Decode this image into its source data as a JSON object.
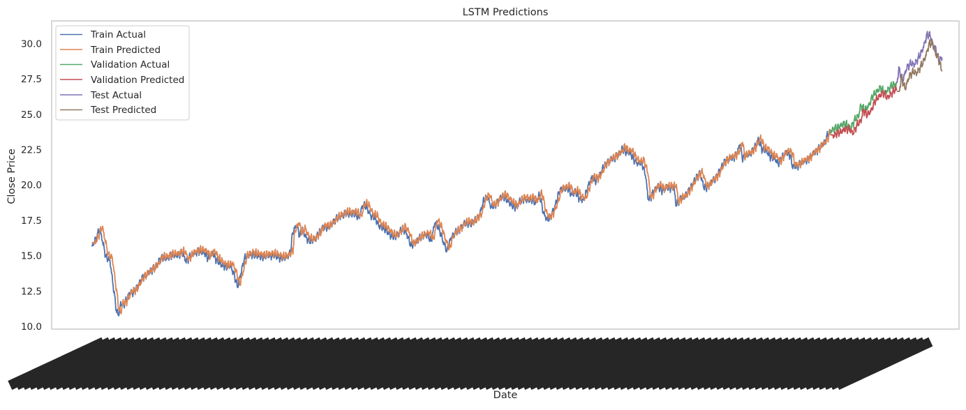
{
  "chart_data": {
    "type": "line",
    "title": "LSTM Predictions",
    "xlabel": "Date",
    "ylabel": "Close Price",
    "ylim": [
      9.8,
      31.6
    ],
    "yticks": [
      10.0,
      12.5,
      15.0,
      17.5,
      20.0,
      22.5,
      25.0,
      27.5,
      30.0
    ],
    "ytick_labels": [
      "10.0",
      "12.5",
      "15.0",
      "17.5",
      "20.0",
      "22.5",
      "25.0",
      "27.5",
      "30.0"
    ],
    "x_index_range": [
      -100,
      2160
    ],
    "grid": false,
    "legend_position": "upper-left",
    "colors": {
      "train_actual": "#4c72b0",
      "train_predicted": "#dd8452",
      "validation_actual": "#55a868",
      "validation_predicted": "#c44e52",
      "test_actual": "#8172b3",
      "test_predicted": "#937860"
    },
    "train_actual_keypoints": [
      [
        0,
        15.6
      ],
      [
        10,
        16.2
      ],
      [
        20,
        16.9
      ],
      [
        30,
        15.6
      ],
      [
        35,
        14.9
      ],
      [
        45,
        14.7
      ],
      [
        55,
        12.5
      ],
      [
        62,
        11.0
      ],
      [
        67,
        10.85
      ],
      [
        72,
        11.6
      ],
      [
        78,
        11.5
      ],
      [
        85,
        11.8
      ],
      [
        95,
        12.4
      ],
      [
        105,
        12.4
      ],
      [
        115,
        12.9
      ],
      [
        125,
        13.4
      ],
      [
        135,
        13.6
      ],
      [
        145,
        13.9
      ],
      [
        160,
        14.2
      ],
      [
        170,
        14.8
      ],
      [
        185,
        14.8
      ],
      [
        195,
        15.0
      ],
      [
        210,
        15.0
      ],
      [
        225,
        15.2
      ],
      [
        235,
        14.6
      ],
      [
        250,
        15.1
      ],
      [
        265,
        15.3
      ],
      [
        280,
        15.2
      ],
      [
        290,
        14.8
      ],
      [
        300,
        15.2
      ],
      [
        310,
        14.7
      ],
      [
        325,
        14.3
      ],
      [
        335,
        14.2
      ],
      [
        345,
        14.3
      ],
      [
        355,
        13.6
      ],
      [
        363,
        12.8
      ],
      [
        370,
        13.6
      ],
      [
        380,
        14.8
      ],
      [
        395,
        15.1
      ],
      [
        410,
        15.0
      ],
      [
        425,
        14.9
      ],
      [
        440,
        15.0
      ],
      [
        455,
        15.0
      ],
      [
        470,
        14.8
      ],
      [
        485,
        14.9
      ],
      [
        495,
        15.2
      ],
      [
        500,
        16.6
      ],
      [
        510,
        17.2
      ],
      [
        518,
        16.4
      ],
      [
        525,
        16.8
      ],
      [
        535,
        16.2
      ],
      [
        545,
        16.0
      ],
      [
        560,
        16.3
      ],
      [
        575,
        17.0
      ],
      [
        590,
        17.0
      ],
      [
        605,
        17.5
      ],
      [
        620,
        17.8
      ],
      [
        635,
        18.0
      ],
      [
        645,
        17.9
      ],
      [
        655,
        18.0
      ],
      [
        665,
        17.6
      ],
      [
        675,
        18.6
      ],
      [
        685,
        18.4
      ],
      [
        695,
        17.8
      ],
      [
        705,
        17.7
      ],
      [
        715,
        17.1
      ],
      [
        725,
        17.0
      ],
      [
        735,
        16.7
      ],
      [
        745,
        16.4
      ],
      [
        755,
        16.3
      ],
      [
        765,
        16.6
      ],
      [
        775,
        16.9
      ],
      [
        785,
        16.5
      ],
      [
        795,
        15.7
      ],
      [
        805,
        15.9
      ],
      [
        815,
        16.2
      ],
      [
        825,
        16.4
      ],
      [
        835,
        16.5
      ],
      [
        845,
        16.0
      ],
      [
        855,
        17.4
      ],
      [
        865,
        16.9
      ],
      [
        875,
        16.0
      ],
      [
        885,
        15.3
      ],
      [
        895,
        16.3
      ],
      [
        905,
        16.6
      ],
      [
        915,
        16.8
      ],
      [
        925,
        17.2
      ],
      [
        935,
        17.3
      ],
      [
        945,
        17.2
      ],
      [
        955,
        17.5
      ],
      [
        965,
        17.8
      ],
      [
        975,
        18.8
      ],
      [
        985,
        19.2
      ],
      [
        995,
        18.4
      ],
      [
        1005,
        18.6
      ],
      [
        1015,
        19.0
      ],
      [
        1025,
        19.2
      ],
      [
        1035,
        18.9
      ],
      [
        1045,
        18.6
      ],
      [
        1055,
        18.4
      ],
      [
        1065,
        18.8
      ],
      [
        1075,
        19.0
      ],
      [
        1085,
        18.9
      ],
      [
        1095,
        19.0
      ],
      [
        1105,
        18.7
      ],
      [
        1115,
        19.3
      ],
      [
        1120,
        18.7
      ],
      [
        1125,
        18.0
      ],
      [
        1135,
        17.5
      ],
      [
        1145,
        17.9
      ],
      [
        1155,
        18.6
      ],
      [
        1165,
        19.6
      ],
      [
        1175,
        19.7
      ],
      [
        1185,
        19.8
      ],
      [
        1195,
        19.3
      ],
      [
        1205,
        19.5
      ],
      [
        1215,
        19.0
      ],
      [
        1225,
        18.9
      ],
      [
        1235,
        19.8
      ],
      [
        1245,
        20.5
      ],
      [
        1255,
        20.3
      ],
      [
        1265,
        20.7
      ],
      [
        1275,
        21.3
      ],
      [
        1285,
        21.6
      ],
      [
        1295,
        21.8
      ],
      [
        1305,
        22.0
      ],
      [
        1315,
        22.2
      ],
      [
        1322,
        22.6
      ],
      [
        1330,
        22.3
      ],
      [
        1340,
        22.3
      ],
      [
        1350,
        21.8
      ],
      [
        1360,
        21.5
      ],
      [
        1370,
        21.6
      ],
      [
        1380,
        20.6
      ],
      [
        1385,
        19.1
      ],
      [
        1390,
        19.0
      ],
      [
        1400,
        19.6
      ],
      [
        1410,
        19.9
      ],
      [
        1420,
        19.6
      ],
      [
        1430,
        19.8
      ],
      [
        1440,
        19.8
      ],
      [
        1450,
        19.8
      ],
      [
        1455,
        18.6
      ],
      [
        1465,
        19.0
      ],
      [
        1475,
        19.1
      ],
      [
        1485,
        19.5
      ],
      [
        1495,
        20.0
      ],
      [
        1505,
        20.5
      ],
      [
        1515,
        20.8
      ],
      [
        1525,
        19.8
      ],
      [
        1535,
        19.9
      ],
      [
        1545,
        20.3
      ],
      [
        1555,
        20.5
      ],
      [
        1565,
        21.1
      ],
      [
        1575,
        21.6
      ],
      [
        1585,
        21.8
      ],
      [
        1595,
        21.9
      ],
      [
        1605,
        22.1
      ],
      [
        1615,
        22.9
      ],
      [
        1620,
        21.9
      ],
      [
        1630,
        22.1
      ],
      [
        1640,
        22.2
      ],
      [
        1650,
        22.6
      ],
      [
        1660,
        23.2
      ],
      [
        1670,
        22.5
      ],
      [
        1680,
        22.4
      ],
      [
        1690,
        22.0
      ],
      [
        1700,
        21.9
      ],
      [
        1710,
        21.5
      ],
      [
        1720,
        22.0
      ],
      [
        1730,
        22.3
      ],
      [
        1740,
        22.1
      ],
      [
        1745,
        21.3
      ],
      [
        1755,
        21.3
      ],
      [
        1765,
        21.5
      ],
      [
        1775,
        21.7
      ],
      [
        1785,
        21.8
      ],
      [
        1795,
        22.2
      ],
      [
        1805,
        22.4
      ],
      [
        1815,
        22.7
      ],
      [
        1825,
        23.0
      ],
      [
        1832,
        23.5
      ],
      [
        1840,
        23.8
      ]
    ],
    "validation_actual_keypoints": [
      [
        1840,
        23.8
      ],
      [
        1850,
        24.0
      ],
      [
        1860,
        24.1
      ],
      [
        1870,
        24.3
      ],
      [
        1880,
        24.3
      ],
      [
        1890,
        24.0
      ],
      [
        1900,
        24.6
      ],
      [
        1910,
        24.9
      ],
      [
        1915,
        25.6
      ],
      [
        1920,
        25.5
      ],
      [
        1925,
        25.3
      ],
      [
        1935,
        25.6
      ],
      [
        1945,
        26.3
      ],
      [
        1955,
        26.6
      ],
      [
        1965,
        26.9
      ],
      [
        1975,
        26.5
      ],
      [
        1985,
        26.8
      ],
      [
        1995,
        27.1
      ],
      [
        2005,
        27.1
      ]
    ],
    "test_actual_keypoints": [
      [
        2005,
        27.1
      ],
      [
        2010,
        28.2
      ],
      [
        2020,
        27.4
      ],
      [
        2030,
        28.3
      ],
      [
        2040,
        28.6
      ],
      [
        2048,
        28.5
      ],
      [
        2055,
        28.8
      ],
      [
        2065,
        29.3
      ],
      [
        2072,
        29.8
      ],
      [
        2080,
        30.6
      ],
      [
        2088,
        30.6
      ],
      [
        2095,
        29.9
      ],
      [
        2102,
        29.6
      ],
      [
        2110,
        28.8
      ],
      [
        2118,
        29.0
      ]
    ],
    "prediction_lag": 6,
    "prediction_offset": 0.15
  }
}
